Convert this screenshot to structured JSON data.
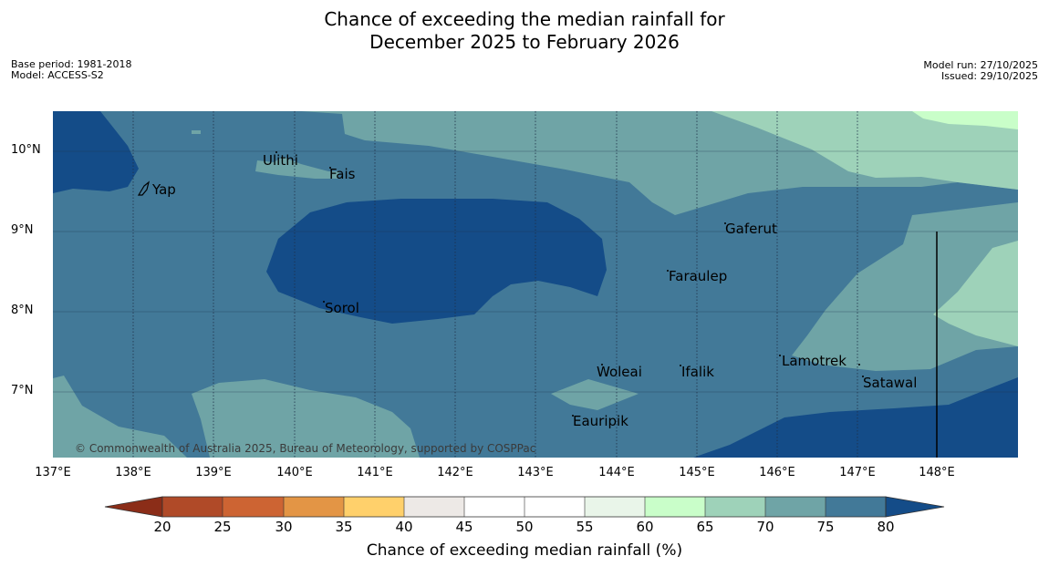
{
  "header": {
    "title_line1": "Chance of exceeding the median rainfall for",
    "title_line2": "December 2025 to February 2026",
    "base_period": "Base period: 1981-2018",
    "model": "Model: ACCESS-S2",
    "model_run": "Model run: 27/10/2025",
    "issued": "Issued: 29/10/2025"
  },
  "map": {
    "latitude_labels": [
      "10°N",
      "9°N",
      "8°N",
      "7°N"
    ],
    "longitude_labels": [
      "137°E",
      "138°E",
      "139°E",
      "140°E",
      "141°E",
      "142°E",
      "143°E",
      "144°E",
      "145°E",
      "146°E",
      "147°E",
      "148°E"
    ],
    "places": [
      "Yap",
      "Ulithi",
      "Fais",
      "Gaferut",
      "Faraulep",
      "Sorol",
      "Woleai",
      "Ifalik",
      "Lamotrek",
      "Satawal",
      "Eauripik"
    ],
    "copyright": "© Commonwealth of Australia 2025, Bureau of Meteorology, supported by COSPPac",
    "colors": {
      "p50_55": "#ffffff",
      "p55_60": "#e9f5e9",
      "p60_65": "#c9fec9",
      "p65_70": "#9ed2b9",
      "p70_75": "#6fa4a6",
      "p75_80": "#427998",
      "p80_plus": "#144c88"
    }
  },
  "colorbar": {
    "ticks": [
      "20",
      "25",
      "30",
      "35",
      "40",
      "45",
      "50",
      "55",
      "60",
      "65",
      "70",
      "75",
      "80"
    ],
    "colors": [
      "#8b2d18",
      "#b04a28",
      "#cd6433",
      "#e39545",
      "#ffd06b",
      "#ede9e6",
      "#ffffff",
      "#ffffff",
      "#e9f5e9",
      "#c9fec9",
      "#9ed2b9",
      "#6fa4a6",
      "#427998",
      "#144c88"
    ],
    "title": "Chance of exceeding median rainfall (%)"
  }
}
